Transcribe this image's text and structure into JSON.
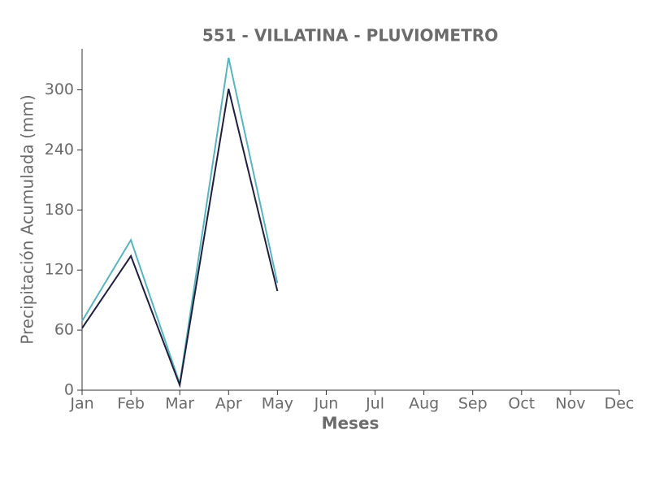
{
  "chart_data": {
    "type": "line",
    "title": "551 - VILLATINA - PLUVIOMETRO",
    "x_label": "Meses",
    "y_label": "Precipitación Acumulada (mm)",
    "categories": [
      "Jan",
      "Feb",
      "Mar",
      "Apr",
      "May",
      "Jun",
      "Jul",
      "Aug",
      "Sep",
      "Oct",
      "Nov",
      "Dec"
    ],
    "series": [
      {
        "color": "#5ab4be",
        "values": [
          69,
          150,
          6.5,
          332,
          107,
          null,
          null,
          null,
          null,
          null,
          null,
          null
        ]
      },
      {
        "color": "#1f1f3d",
        "values": [
          62,
          134,
          5,
          301,
          99,
          null,
          null,
          null,
          null,
          null,
          null,
          null
        ]
      }
    ],
    "ylim": [
      0,
      341
    ],
    "yticks": [
      0,
      60,
      120,
      180,
      240,
      300
    ],
    "grid": false
  }
}
